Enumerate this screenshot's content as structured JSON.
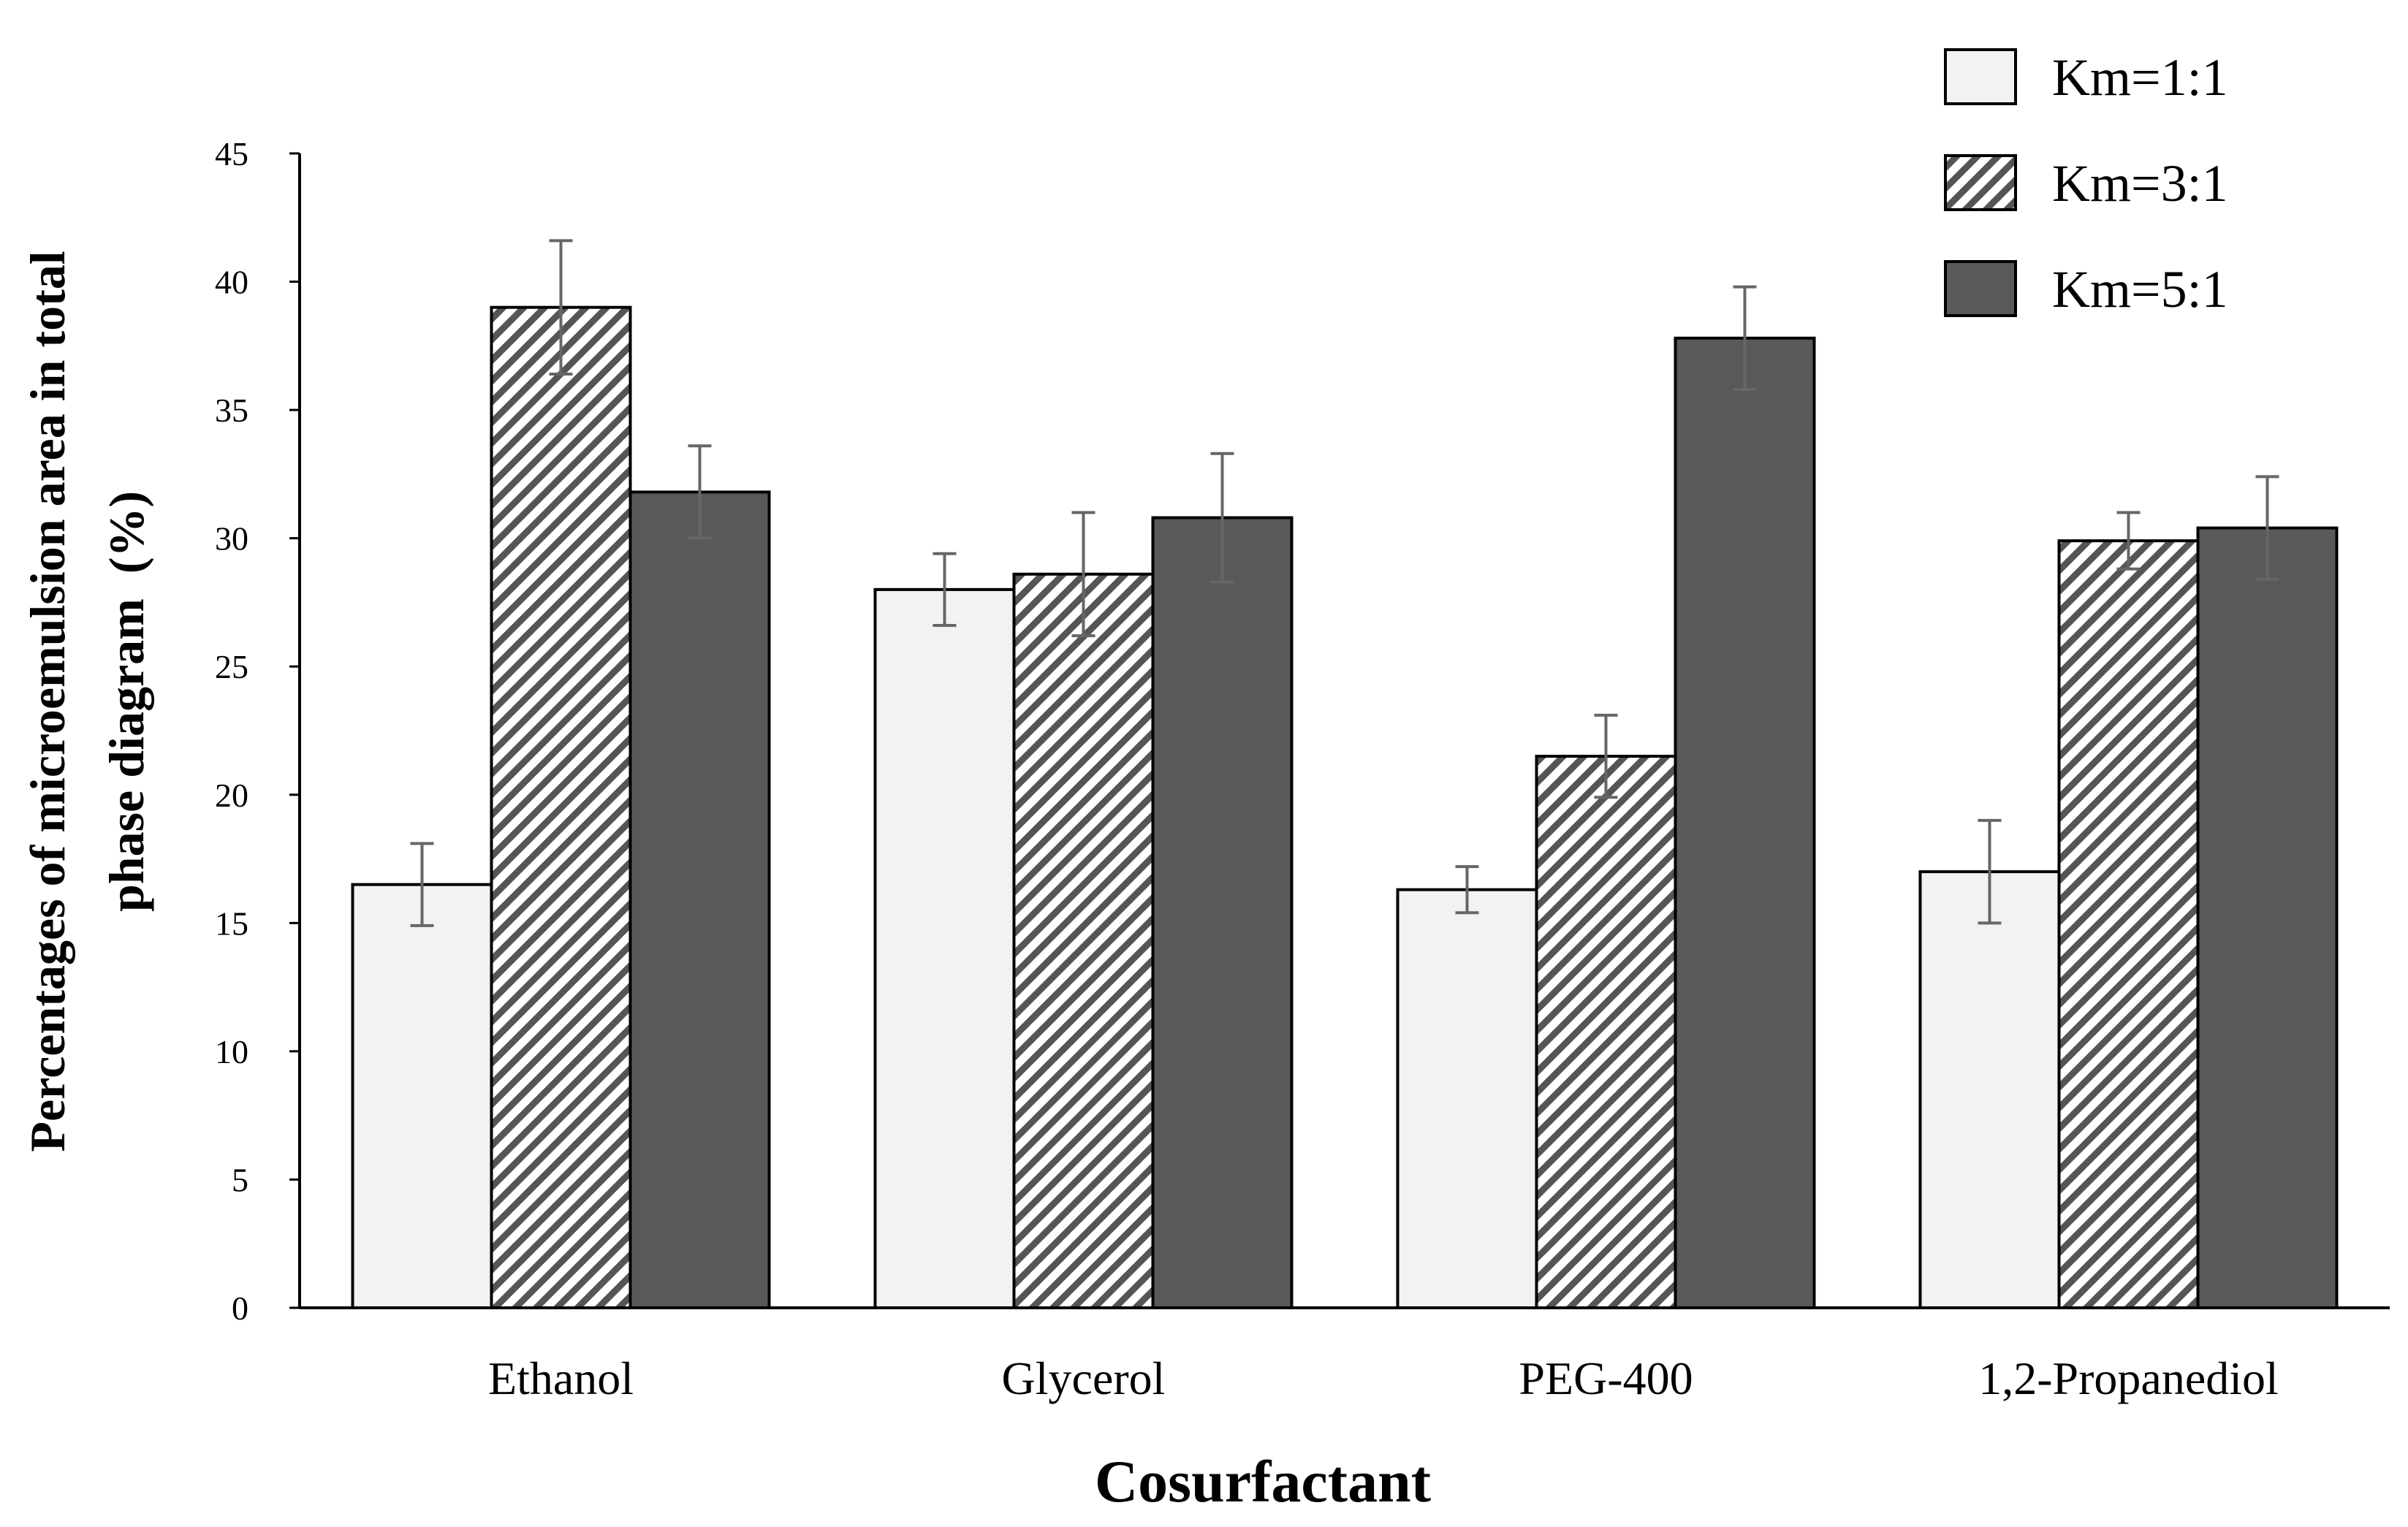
{
  "chart_data": {
    "type": "bar",
    "categories": [
      "Ethanol",
      "Glycerol",
      "PEG-400",
      "1,2-Propanediol"
    ],
    "series": [
      {
        "name": "Km=1:1",
        "values": [
          16.5,
          28.0,
          16.3,
          17.0
        ],
        "errors": [
          1.6,
          1.4,
          0.9,
          2.0
        ],
        "fill": "#f2f2f2",
        "pattern": "solid"
      },
      {
        "name": "Km=3:1",
        "values": [
          39.0,
          28.6,
          21.5,
          29.9
        ],
        "errors": [
          2.6,
          2.4,
          1.6,
          1.1
        ],
        "fill": "#ffffff",
        "pattern": "diagonal-hatch"
      },
      {
        "name": "Km=5:1",
        "values": [
          31.8,
          30.8,
          37.8,
          30.4
        ],
        "errors": [
          1.8,
          2.5,
          2.0,
          2.0
        ],
        "fill": "#595959",
        "pattern": "solid"
      }
    ],
    "xlabel": "Cosurfactant",
    "ylabel_lines": [
      "Percentages of microemulsion area in total",
      "phase diagram  (%)"
    ],
    "ylim": [
      0,
      45
    ],
    "yticks": [
      0,
      5,
      10,
      15,
      20,
      25,
      30,
      35,
      40,
      45
    ],
    "grid": false,
    "legend_position": "top-right",
    "colors": {
      "bar_stroke": "#000000",
      "hatch_stroke": "#555555",
      "error_bar": "#666666",
      "axis": "#000000"
    }
  }
}
